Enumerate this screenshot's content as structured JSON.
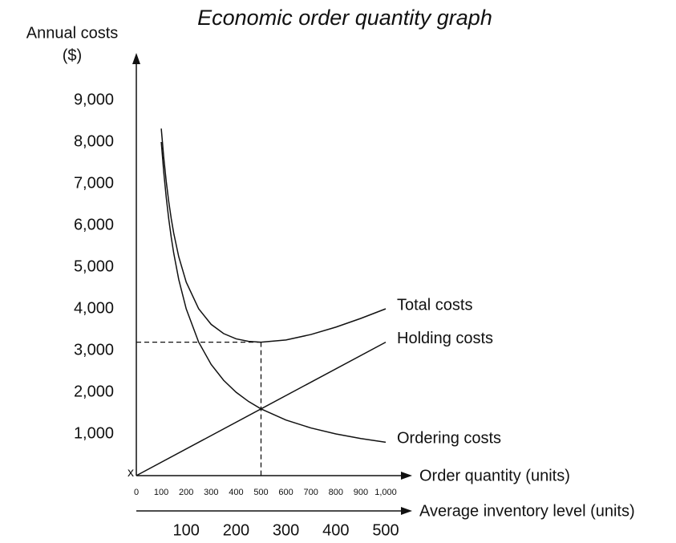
{
  "chart_data": {
    "type": "line",
    "title": "Economic order quantity graph",
    "ylabel": [
      "Annual costs",
      "($)"
    ],
    "xlabel": "Order quantity (units)",
    "x2label": "Average inventory level (units)",
    "origin_label": "x",
    "xlim": [
      0,
      1000
    ],
    "ylim": [
      0,
      10000
    ],
    "x2lim": [
      0,
      500
    ],
    "xticks": [
      0,
      100,
      200,
      300,
      400,
      500,
      600,
      700,
      800,
      900,
      {
        "value": 1000,
        "label": "1,000"
      }
    ],
    "x2ticks": [
      100,
      200,
      300,
      400,
      500
    ],
    "yticks": [
      {
        "value": 1000,
        "label": "1,000"
      },
      {
        "value": 2000,
        "label": "2,000"
      },
      {
        "value": 3000,
        "label": "3,000"
      },
      {
        "value": 4000,
        "label": "4,000"
      },
      {
        "value": 5000,
        "label": "5,000"
      },
      {
        "value": 6000,
        "label": "6,000"
      },
      {
        "value": 7000,
        "label": "7,000"
      },
      {
        "value": 8000,
        "label": "8,000"
      },
      {
        "value": 9000,
        "label": "9,000"
      }
    ],
    "eoq": {
      "x": 500,
      "y": 3200
    },
    "series": [
      {
        "name": "Total costs",
        "color": "#111111",
        "x": [
          100,
          110,
          120,
          130,
          140,
          150,
          170,
          200,
          250,
          300,
          350,
          400,
          450,
          500,
          600,
          700,
          800,
          900,
          1000
        ],
        "values": [
          8320,
          7625,
          7051,
          6570,
          6162,
          5813,
          5250,
          4640,
          4000,
          3627,
          3406,
          3280,
          3218,
          3200,
          3253,
          3383,
          3560,
          3769,
          4000
        ]
      },
      {
        "name": "Holding costs",
        "color": "#111111",
        "x": [
          0,
          1000
        ],
        "values": [
          0,
          3200
        ]
      },
      {
        "name": "Ordering costs",
        "color": "#111111",
        "x": [
          100,
          110,
          120,
          130,
          140,
          150,
          170,
          200,
          250,
          300,
          350,
          400,
          450,
          500,
          600,
          700,
          800,
          900,
          1000
        ],
        "values": [
          8000,
          7273,
          6667,
          6154,
          5714,
          5333,
          4706,
          4000,
          3200,
          2667,
          2286,
          2000,
          1778,
          1600,
          1333,
          1143,
          1000,
          889,
          800
        ]
      }
    ]
  }
}
